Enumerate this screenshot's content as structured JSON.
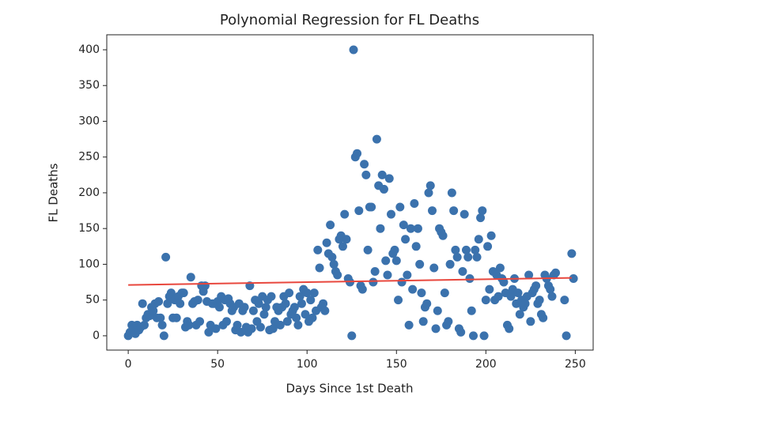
{
  "chart_data": {
    "type": "scatter",
    "title": "Polynomial Regression for FL Deaths",
    "x_label": "Days Since 1st Death",
    "y_label": "FL Deaths",
    "xlim": [
      -12,
      260
    ],
    "ylim": [
      -20,
      421
    ],
    "xticks": [
      0,
      50,
      100,
      150,
      200,
      250
    ],
    "yticks": [
      0,
      50,
      100,
      150,
      200,
      250,
      300,
      350,
      400
    ],
    "series": [
      {
        "type": "scatter",
        "color": "#3b72ad",
        "x": [
          0,
          1,
          2,
          3,
          4,
          5,
          6,
          7,
          8,
          9,
          10,
          11,
          12,
          13,
          14,
          15,
          16,
          17,
          18,
          19,
          20,
          21,
          22,
          23,
          24,
          25,
          26,
          27,
          28,
          29,
          30,
          31,
          32,
          33,
          34,
          35,
          36,
          37,
          38,
          39,
          40,
          41,
          42,
          43,
          44,
          45,
          46,
          47,
          48,
          49,
          50,
          51,
          52,
          53,
          54,
          55,
          56,
          57,
          58,
          59,
          60,
          61,
          62,
          63,
          64,
          65,
          66,
          67,
          68,
          69,
          70,
          71,
          72,
          73,
          74,
          75,
          76,
          77,
          78,
          79,
          80,
          81,
          82,
          83,
          84,
          85,
          86,
          87,
          88,
          89,
          90,
          91,
          92,
          93,
          94,
          95,
          96,
          97,
          98,
          99,
          100,
          101,
          102,
          103,
          104,
          105,
          106,
          107,
          108,
          109,
          110,
          111,
          112,
          113,
          114,
          115,
          116,
          117,
          118,
          119,
          120,
          121,
          122,
          123,
          124,
          125,
          126,
          127,
          128,
          129,
          130,
          131,
          132,
          133,
          134,
          135,
          136,
          137,
          138,
          139,
          140,
          141,
          142,
          143,
          144,
          145,
          146,
          147,
          148,
          149,
          150,
          151,
          152,
          153,
          154,
          155,
          156,
          157,
          158,
          159,
          160,
          161,
          162,
          163,
          164,
          165,
          166,
          167,
          168,
          169,
          170,
          171,
          172,
          173,
          174,
          175,
          176,
          177,
          178,
          179,
          180,
          181,
          182,
          183,
          184,
          185,
          186,
          187,
          188,
          189,
          190,
          191,
          192,
          193,
          194,
          195,
          196,
          197,
          198,
          199,
          200,
          201,
          202,
          203,
          204,
          205,
          206,
          207,
          208,
          209,
          210,
          211,
          212,
          213,
          214,
          215,
          216,
          217,
          218,
          219,
          220,
          221,
          222,
          223,
          224,
          225,
          226,
          227,
          228,
          229,
          230,
          231,
          232,
          233,
          234,
          235,
          236,
          237,
          238,
          239,
          245,
          248,
          249,
          244
        ],
        "values": [
          0,
          5,
          15,
          10,
          3,
          15,
          8,
          12,
          45,
          15,
          25,
          30,
          28,
          40,
          35,
          45,
          25,
          48,
          25,
          15,
          0,
          110,
          45,
          55,
          60,
          25,
          50,
          25,
          55,
          45,
          60,
          60,
          12,
          20,
          15,
          82,
          45,
          48,
          15,
          50,
          20,
          70,
          62,
          70,
          48,
          5,
          15,
          45,
          45,
          10,
          48,
          40,
          55,
          15,
          50,
          20,
          52,
          45,
          35,
          40,
          8,
          15,
          45,
          5,
          35,
          40,
          12,
          5,
          70,
          10,
          35,
          50,
          20,
          45,
          12,
          55,
          30,
          40,
          50,
          8,
          55,
          10,
          20,
          40,
          35,
          15,
          40,
          55,
          45,
          20,
          60,
          30,
          35,
          40,
          25,
          15,
          55,
          45,
          65,
          30,
          60,
          20,
          50,
          25,
          60,
          35,
          120,
          95,
          40,
          45,
          35,
          130,
          115,
          155,
          110,
          100,
          90,
          85,
          135,
          140,
          125,
          170,
          135,
          80,
          75,
          0,
          400,
          250,
          255,
          175,
          70,
          65,
          240,
          225,
          120,
          180,
          180,
          75,
          90,
          275,
          210,
          150,
          225,
          205,
          105,
          85,
          220,
          170,
          115,
          120,
          105,
          50,
          180,
          75,
          155,
          135,
          85,
          15,
          150,
          65,
          185,
          125,
          150,
          100,
          60,
          20,
          40,
          45,
          200,
          210,
          175,
          95,
          10,
          35,
          150,
          145,
          140,
          60,
          15,
          20,
          100,
          200,
          175,
          120,
          110,
          10,
          5,
          90,
          170,
          120,
          110,
          80,
          35,
          0,
          120,
          110,
          135,
          165,
          175,
          0,
          50,
          125,
          65,
          140,
          90,
          50,
          85,
          55,
          95,
          80,
          75,
          60,
          15,
          10,
          55,
          65,
          80,
          45,
          60,
          30,
          50,
          40,
          45,
          55,
          85,
          20,
          60,
          65,
          70,
          45,
          50,
          30,
          25,
          85,
          80,
          70,
          65,
          55,
          85,
          88,
          0,
          115,
          80,
          50
        ]
      },
      {
        "type": "line",
        "color": "#e8473d",
        "x": [
          0,
          248
        ],
        "values": [
          71,
          81
        ]
      }
    ]
  }
}
